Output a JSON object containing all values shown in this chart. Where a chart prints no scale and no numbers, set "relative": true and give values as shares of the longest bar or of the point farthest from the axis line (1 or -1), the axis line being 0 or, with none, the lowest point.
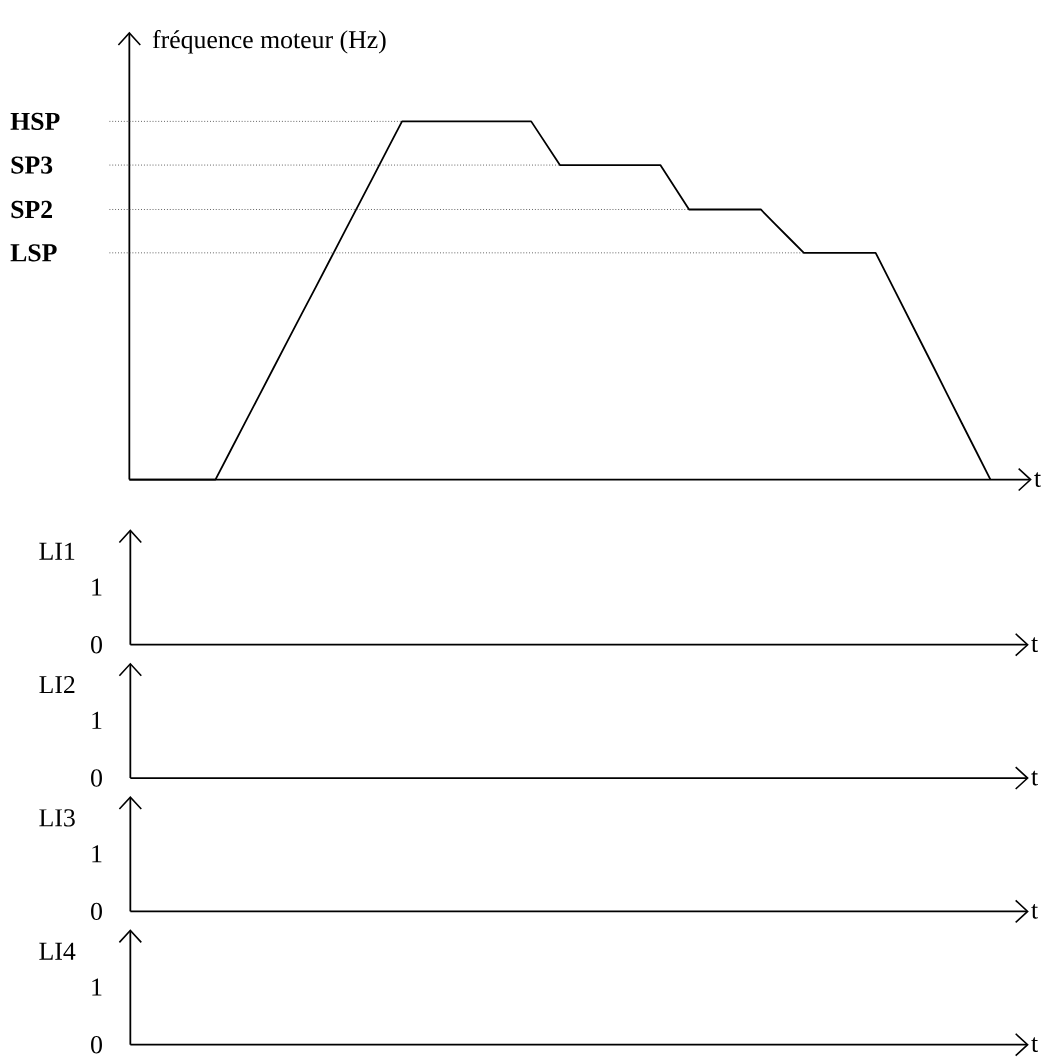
{
  "chart_data": [
    {
      "type": "line",
      "ylabel": "fréquence moteur (Hz)",
      "xlabel": "t",
      "relative": true,
      "categories": [
        null,
        null,
        null,
        null,
        null,
        null,
        null,
        null,
        null,
        null,
        null,
        null,
        null,
        null,
        null,
        null,
        null,
        null,
        null,
        null,
        null,
        null,
        null,
        null,
        null,
        null,
        null,
        null,
        null,
        null,
        null,
        null,
        null,
        null,
        null,
        null,
        null,
        null,
        null,
        null,
        null,
        null,
        null,
        null,
        null,
        null,
        null,
        null,
        null,
        null,
        null,
        null,
        null,
        null,
        null,
        null,
        null,
        null,
        null,
        null,
        null
      ],
      "series": [
        {
          "color": "#000000",
          "values": [
            0,
            0,
            0,
            0,
            0,
            0,
            0,
            0.077,
            0.154,
            0.231,
            0.308,
            0.385,
            0.462,
            0.538,
            0.615,
            0.692,
            0.769,
            0.846,
            0.923,
            1,
            1,
            1,
            1,
            1,
            1,
            1,
            1,
            1,
            1,
            0.939,
            0.878,
            0.878,
            0.878,
            0.878,
            0.878,
            0.878,
            0.878,
            0.878,
            0.816,
            0.754,
            0.754,
            0.754,
            0.754,
            0.754,
            0.754,
            0.713,
            0.673,
            0.633,
            0.633,
            0.633,
            0.633,
            0.633,
            0.633,
            0.554,
            0.475,
            0.396,
            0.317,
            0.237,
            0.158,
            0.079,
            0
          ]
        }
      ],
      "ref_lines": [
        {
          "axis": "y",
          "value": 1,
          "label": "HSP",
          "color": "#404040",
          "line_style": "dotted"
        },
        {
          "axis": "y",
          "value": 0.878,
          "label": "SP3",
          "color": "#404040",
          "line_style": "dotted"
        },
        {
          "axis": "y",
          "value": 0.754,
          "label": "SP2",
          "color": "#404040",
          "line_style": "dotted"
        },
        {
          "axis": "y",
          "value": 0.633,
          "label": "LSP",
          "color": "#404040",
          "line_style": "dotted"
        }
      ]
    },
    {
      "type": "other",
      "ylabel": "LI1",
      "xlabel": "t",
      "annotations": [
        "1",
        "0"
      ]
    },
    {
      "type": "other",
      "ylabel": "LI2",
      "xlabel": "t",
      "annotations": [
        "1",
        "0"
      ]
    },
    {
      "type": "other",
      "ylabel": "LI3",
      "xlabel": "t",
      "annotations": [
        "1",
        "0"
      ]
    },
    {
      "type": "other",
      "ylabel": "LI4",
      "xlabel": "t",
      "annotations": [
        "1",
        "0"
      ]
    }
  ]
}
